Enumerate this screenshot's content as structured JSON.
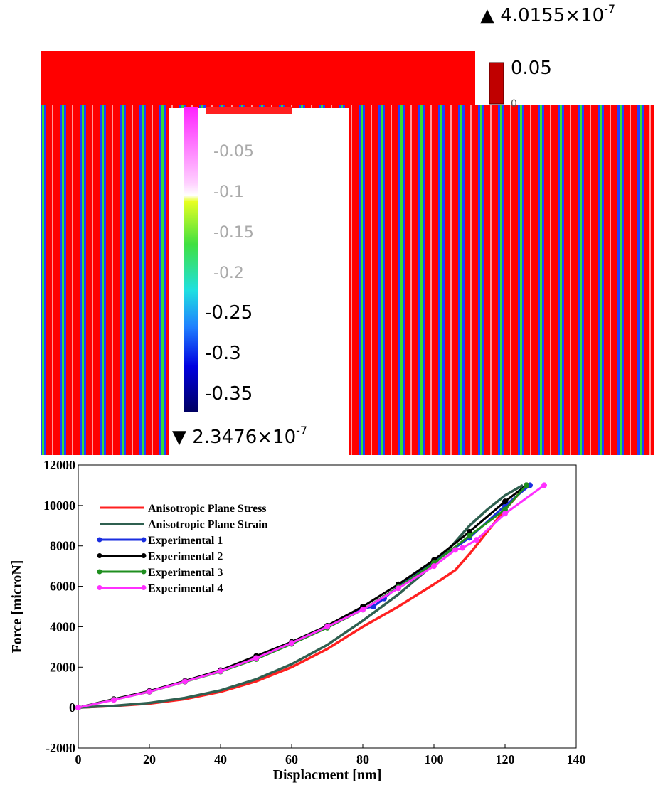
{
  "figure": {
    "max_value": "4.0155×10",
    "max_exponent": "-7",
    "min_value": "2.3476×10",
    "min_exponent": "-7",
    "small_bar_labels": [
      "0.05",
      "0"
    ],
    "bar_labels": [
      "-0.05",
      "-0.1",
      "-0.15",
      "-0.2",
      "-0.25",
      "-0.3",
      "-0.35"
    ]
  },
  "chart_data": {
    "type": "line",
    "xlabel": "Displacment [nm]",
    "ylabel": "Force [microN]",
    "xlim": [
      0,
      140
    ],
    "xticks": [
      0,
      20,
      40,
      60,
      80,
      100,
      120,
      140
    ],
    "ylim": [
      -2000,
      12000
    ],
    "yticks": [
      -2000,
      0,
      2000,
      4000,
      6000,
      8000,
      10000,
      12000
    ],
    "legend": "upper left",
    "series": [
      {
        "name": "Anisotropic Plane Stress",
        "color": "#ff2020",
        "x": [
          0,
          10,
          20,
          30,
          40,
          50,
          60,
          70,
          80,
          90,
          100,
          106,
          110,
          115,
          120,
          126
        ],
        "values": [
          0,
          80,
          200,
          420,
          780,
          1300,
          2000,
          2900,
          4000,
          5000,
          6100,
          6800,
          7600,
          8700,
          9800,
          11000
        ]
      },
      {
        "name": "Anisotropic Plane Strain",
        "color": "#2f6050",
        "x": [
          0,
          10,
          20,
          30,
          40,
          50,
          60,
          70,
          80,
          90,
          100,
          105,
          110,
          115,
          120,
          125
        ],
        "values": [
          0,
          90,
          230,
          480,
          850,
          1400,
          2150,
          3100,
          4300,
          5600,
          7100,
          8000,
          9000,
          9800,
          10500,
          11000
        ]
      },
      {
        "name": "Experimental 1",
        "color": "#1a2ee0",
        "marker": "circle",
        "x": [
          0,
          10,
          20,
          30,
          40,
          50,
          60,
          70,
          80,
          83,
          86,
          90,
          100,
          110,
          120,
          127
        ],
        "values": [
          0,
          400,
          800,
          1300,
          1800,
          2500,
          3200,
          4000,
          4900,
          5000,
          5400,
          6000,
          7200,
          8400,
          10000,
          11000
        ]
      },
      {
        "name": "Experimental 2",
        "color": "#000000",
        "marker": "circle",
        "x": [
          0,
          10,
          20,
          30,
          40,
          50,
          60,
          70,
          80,
          90,
          100,
          110,
          120,
          126
        ],
        "values": [
          0,
          420,
          820,
          1320,
          1850,
          2550,
          3250,
          4050,
          5000,
          6100,
          7300,
          8700,
          10200,
          11000
        ]
      },
      {
        "name": "Experimental 3",
        "color": "#1f8f1f",
        "marker": "circle",
        "x": [
          0,
          10,
          20,
          30,
          40,
          50,
          60,
          70,
          80,
          90,
          100,
          110,
          120,
          126
        ],
        "values": [
          0,
          390,
          780,
          1280,
          1780,
          2400,
          3150,
          3950,
          4850,
          5950,
          7150,
          8500,
          9800,
          11000
        ]
      },
      {
        "name": "Experimental 4",
        "color": "#ff30ff",
        "marker": "circle",
        "x": [
          0,
          10,
          20,
          30,
          40,
          50,
          60,
          70,
          80,
          90,
          100,
          106,
          108,
          112,
          120,
          131
        ],
        "values": [
          0,
          380,
          790,
          1290,
          1800,
          2450,
          3200,
          4000,
          4850,
          5900,
          7000,
          7800,
          7900,
          8300,
          9600,
          11000
        ]
      }
    ]
  }
}
